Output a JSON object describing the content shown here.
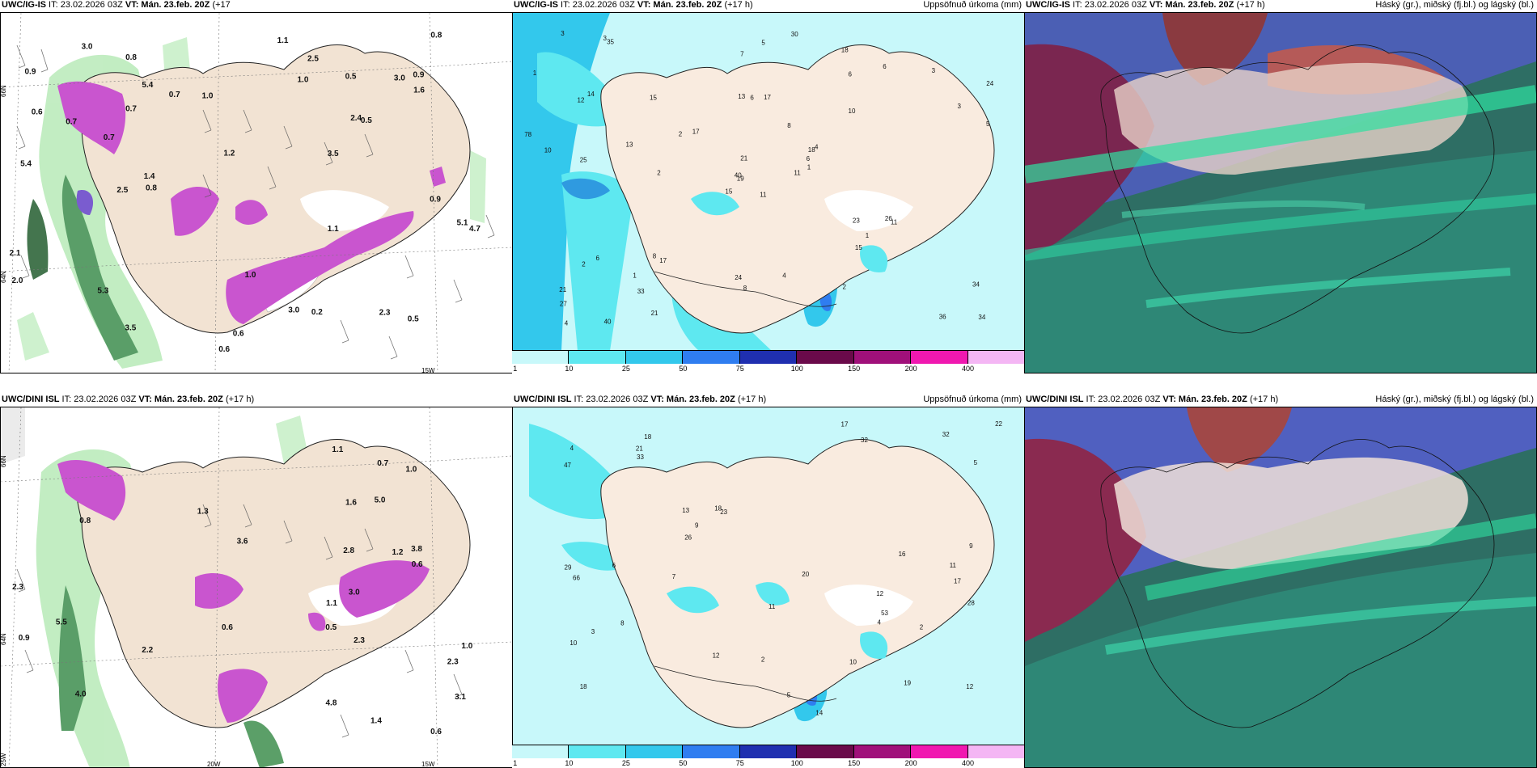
{
  "panels": [
    {
      "id": "p1",
      "title_model": "UWC/IG-IS",
      "title_it": " IT: 23.02.2026 03Z ",
      "title_vt": "VT: Mán. 23.feb. 20Z",
      "title_lead": " (+17",
      "title_lead2": "h)",
      "right_title": ""
    },
    {
      "id": "p2",
      "title_model": "UWC/IG-IS",
      "title_it": " IT: 23.02.2026 03Z ",
      "title_vt": "VT: Mán. 23.feb. 20Z",
      "title_lead": " (+17 h)",
      "right_title": "Uppsöfnuð úrkoma (mm)"
    },
    {
      "id": "p3",
      "title_model": "UWC/IG-IS",
      "title_it": " IT: 23.02.2026 03Z ",
      "title_vt": "VT: Mán. 23.feb. 20Z",
      "title_lead": " (+17 h)",
      "right_title": "Háský (gr.), miðský (fj.bl.) og lágský (bl.)"
    },
    {
      "id": "p4",
      "title_model": "UWC/DINI ISL",
      "title_it": " IT: 23.02.2026 03Z ",
      "title_vt": "VT: Mán. 23.feb. 20Z",
      "title_lead": " (+17 h)",
      "right_title": ""
    },
    {
      "id": "p5",
      "title_model": "UWC/DINI ISL",
      "title_it": " IT: 23.02.2026 03Z ",
      "title_vt": "VT: Mán. 23.feb. 20Z",
      "title_lead": " (+17 h)",
      "right_title": "Uppsöfnuð úrkoma (mm)"
    },
    {
      "id": "p6",
      "title_model": "UWC/DINI ISL",
      "title_it": " IT: 23.02.2026 03Z ",
      "title_vt": "VT: Mán. 23.feb. 20Z",
      "title_lead": " (+17 h)",
      "right_title": "Háský (gr.), miðský (fj.bl.) og lágský (bl.)"
    }
  ],
  "axis_labels": {
    "n66": "66N",
    "n64": "64N",
    "w25": "25W",
    "w20": "20W",
    "w15": "15W"
  },
  "colorbar": {
    "ticks": [
      "1",
      "10",
      "25",
      "50",
      "75",
      "100",
      "150",
      "200",
      "400"
    ],
    "colors": [
      "#c8f8fa",
      "#5ee8f0",
      "#33c8ec",
      "#2f7df0",
      "#1f2fb0",
      "#6a0a4a",
      "#a0107a",
      "#f018b0",
      "#f4b6f4"
    ]
  },
  "precip_labels_top": [
    "11",
    "12",
    "19",
    "21",
    "18",
    "17",
    "18",
    "17",
    "6",
    "11",
    "35",
    "34",
    "25",
    "24",
    "15",
    "10",
    "40",
    "13",
    "8",
    "6",
    "17",
    "27",
    "33",
    "6",
    "4",
    "11",
    "14",
    "7",
    "10",
    "23",
    "5",
    "40",
    "24",
    "21",
    "15",
    "6",
    "8",
    "36",
    "34",
    "26",
    "30",
    "2",
    "13",
    "15",
    "21",
    "78",
    "6",
    "4",
    "8",
    "1",
    "2",
    "3",
    "1",
    "1",
    "2",
    "1",
    "3",
    "3",
    "4",
    "3",
    "5",
    "2"
  ],
  "precip_labels_bottom": [
    "12",
    "17",
    "18",
    "18",
    "23",
    "19",
    "10",
    "32",
    "13",
    "14",
    "47",
    "29",
    "4",
    "12",
    "12",
    "9",
    "11",
    "20",
    "18",
    "8",
    "22",
    "32",
    "26",
    "28",
    "17",
    "21",
    "53",
    "66",
    "33",
    "16",
    "5",
    "10",
    "9",
    "7",
    "11",
    "2",
    "4",
    "6",
    "2",
    "3",
    "5"
  ],
  "wind_labels_top": [
    "0.6",
    "0.7",
    "3.5",
    "0.6",
    "3.0",
    "0.6",
    "1.1",
    "0.8",
    "0.9",
    "4.7",
    "5.1",
    "5.4",
    "2.4",
    "5.3",
    "5.4",
    "3.5",
    "1.4",
    "1.0",
    "0.5",
    "3.0",
    "2.3",
    "0.9",
    "1.2",
    "1.0",
    "0.5",
    "0.7",
    "1.6",
    "2.5",
    "3.0",
    "2.5",
    "2.1",
    "0.2",
    "0.8",
    "0.7",
    "0.9",
    "0.8",
    "0.7",
    "1.0",
    "1.1",
    "2.0",
    "0.5"
  ],
  "wind_labels_bottom": [
    "0.5",
    "1.0",
    "1.2",
    "2.3",
    "4.8",
    "5.0",
    "3.8",
    "3.6",
    "3.1",
    "1.4",
    "3.0",
    "1.1",
    "0.9",
    "2.3",
    "2.2",
    "0.6",
    "1.0",
    "5.5",
    "0.7",
    "1.3",
    "0.6",
    "2.3",
    "2.8",
    "1.1",
    "0.6",
    "4.0",
    "0.8",
    "1.6"
  ]
}
